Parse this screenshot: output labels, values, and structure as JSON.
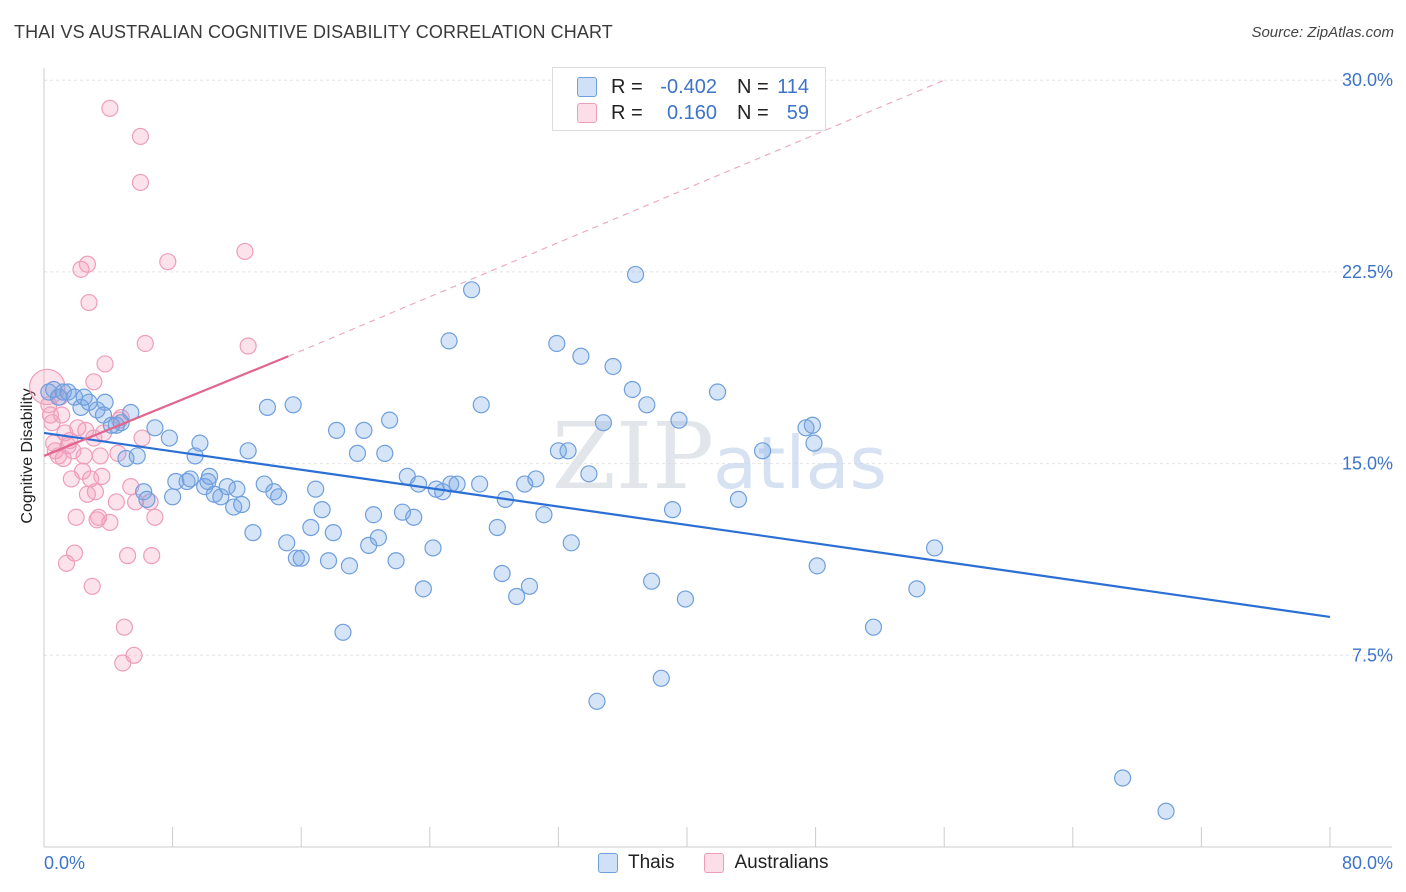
{
  "header": {
    "title": "THAI VS AUSTRALIAN COGNITIVE DISABILITY CORRELATION CHART",
    "source": "Source: ZipAtlas.com"
  },
  "watermark": {
    "zip": "ZIP",
    "atlas": "atlas"
  },
  "legend": {
    "series": [
      {
        "r_label": "R =",
        "r_value": "-0.402",
        "n_label": "N =",
        "n_value": "114"
      },
      {
        "r_label": "R =",
        "r_value": "0.160",
        "n_label": "N =",
        "n_value": "59"
      }
    ],
    "bottom": [
      "Thais",
      "Australians"
    ]
  },
  "colors": {
    "thais_fill": "rgba(120,165,230,0.30)",
    "thais_stroke": "#6f9fdc",
    "thais_line": "#2b6fd4",
    "aus_fill": "rgba(245,160,190,0.30)",
    "aus_stroke": "#ee9dba",
    "aus_line": "#e0668f",
    "tick_label": "#3d74c9"
  },
  "chart_data": {
    "type": "scatter",
    "title": "THAI VS AUSTRALIAN COGNITIVE DISABILITY CORRELATION CHART",
    "xlabel": "",
    "ylabel": "Cognitive Disability",
    "xlim": [
      0,
      80
    ],
    "ylim": [
      0,
      31
    ],
    "x_tick_labels": [
      {
        "value": 0,
        "label": "0.0%"
      },
      {
        "value": 80,
        "label": "80.0%"
      }
    ],
    "y_tick_labels": [
      {
        "value": 7.5,
        "label": "7.5%"
      },
      {
        "value": 15,
        "label": "15.0%"
      },
      {
        "value": 22.5,
        "label": "22.5%"
      },
      {
        "value": 30,
        "label": "30.0%"
      }
    ],
    "x_minor_ticks": [
      0,
      8,
      16,
      24,
      32,
      40,
      48,
      56,
      64,
      72,
      80
    ],
    "grid": true,
    "legend_position": "top-center",
    "series": [
      {
        "name": "Thais",
        "trend": {
          "x0": 0,
          "y0": 16.2,
          "x1": 80,
          "y1": 9.0
        },
        "points": [
          [
            0.3,
            17.8
          ],
          [
            0.6,
            17.9
          ],
          [
            0.9,
            17.6
          ],
          [
            1.2,
            17.8
          ],
          [
            1.5,
            17.8
          ],
          [
            1.9,
            17.6
          ],
          [
            2.3,
            17.2
          ],
          [
            2.8,
            17.4
          ],
          [
            3.3,
            17.1
          ],
          [
            3.8,
            17.4
          ],
          [
            3.7,
            16.9
          ],
          [
            4.5,
            16.5
          ],
          [
            4.8,
            16.6
          ],
          [
            5.4,
            17.0
          ],
          [
            5.1,
            15.2
          ],
          [
            5.8,
            15.3
          ],
          [
            6.2,
            13.9
          ],
          [
            6.4,
            13.6
          ],
          [
            6.9,
            16.4
          ],
          [
            7.8,
            16.0
          ],
          [
            8.0,
            13.7
          ],
          [
            8.2,
            14.3
          ],
          [
            8.9,
            14.3
          ],
          [
            9.1,
            14.4
          ],
          [
            9.4,
            15.3
          ],
          [
            9.7,
            15.8
          ],
          [
            10.0,
            14.1
          ],
          [
            10.2,
            14.3
          ],
          [
            10.3,
            14.5
          ],
          [
            10.6,
            13.8
          ],
          [
            11.0,
            13.7
          ],
          [
            11.4,
            14.1
          ],
          [
            11.8,
            13.3
          ],
          [
            12.0,
            14.0
          ],
          [
            12.3,
            13.4
          ],
          [
            12.7,
            15.5
          ],
          [
            13.0,
            12.3
          ],
          [
            13.7,
            14.2
          ],
          [
            13.9,
            17.2
          ],
          [
            14.3,
            13.9
          ],
          [
            14.6,
            13.7
          ],
          [
            15.1,
            11.9
          ],
          [
            15.5,
            17.3
          ],
          [
            15.7,
            11.3
          ],
          [
            16.0,
            11.3
          ],
          [
            16.6,
            12.5
          ],
          [
            16.9,
            14.0
          ],
          [
            17.3,
            13.2
          ],
          [
            17.7,
            11.2
          ],
          [
            18.0,
            12.3
          ],
          [
            18.2,
            16.3
          ],
          [
            18.6,
            8.4
          ],
          [
            19.0,
            11.0
          ],
          [
            19.5,
            15.4
          ],
          [
            19.9,
            16.3
          ],
          [
            20.2,
            11.8
          ],
          [
            20.5,
            13.0
          ],
          [
            20.8,
            12.1
          ],
          [
            21.2,
            15.4
          ],
          [
            21.5,
            16.7
          ],
          [
            21.9,
            11.2
          ],
          [
            22.3,
            13.1
          ],
          [
            22.6,
            14.5
          ],
          [
            23.0,
            12.9
          ],
          [
            23.3,
            14.2
          ],
          [
            23.6,
            10.1
          ],
          [
            24.2,
            11.7
          ],
          [
            24.4,
            14.0
          ],
          [
            24.8,
            13.9
          ],
          [
            25.3,
            14.2
          ],
          [
            25.7,
            14.2
          ],
          [
            25.2,
            19.8
          ],
          [
            26.6,
            21.8
          ],
          [
            27.1,
            14.2
          ],
          [
            27.2,
            17.3
          ],
          [
            28.2,
            12.5
          ],
          [
            28.5,
            10.7
          ],
          [
            28.7,
            13.6
          ],
          [
            29.4,
            9.8
          ],
          [
            29.9,
            14.2
          ],
          [
            30.2,
            10.2
          ],
          [
            30.6,
            14.4
          ],
          [
            31.1,
            13.0
          ],
          [
            32.0,
            15.5
          ],
          [
            32.6,
            15.5
          ],
          [
            31.9,
            19.7
          ],
          [
            32.8,
            11.9
          ],
          [
            33.4,
            19.2
          ],
          [
            33.9,
            14.6
          ],
          [
            34.4,
            5.7
          ],
          [
            34.8,
            16.6
          ],
          [
            35.4,
            18.8
          ],
          [
            36.6,
            17.9
          ],
          [
            36.8,
            22.4
          ],
          [
            37.5,
            17.3
          ],
          [
            37.8,
            10.4
          ],
          [
            38.4,
            6.6
          ],
          [
            39.1,
            13.2
          ],
          [
            39.5,
            16.7
          ],
          [
            39.9,
            9.7
          ],
          [
            41.9,
            17.8
          ],
          [
            43.2,
            13.6
          ],
          [
            44.7,
            15.5
          ],
          [
            47.4,
            16.4
          ],
          [
            47.8,
            16.5
          ],
          [
            47.9,
            15.8
          ],
          [
            48.1,
            11.0
          ],
          [
            51.6,
            8.6
          ],
          [
            54.3,
            10.1
          ],
          [
            55.4,
            11.7
          ],
          [
            67.1,
            2.7
          ],
          [
            69.8,
            1.4
          ],
          [
            4.2,
            16.5
          ],
          [
            2.5,
            17.6
          ]
        ],
        "sizes": [
          1,
          1,
          1,
          1,
          1,
          1,
          1,
          1,
          1,
          1,
          1,
          1,
          1,
          1,
          1,
          1,
          1,
          1,
          1,
          1,
          1,
          1,
          1,
          1,
          1,
          1,
          1,
          1,
          1,
          1,
          1,
          1,
          1,
          1,
          1,
          1,
          1,
          1,
          1,
          1,
          1,
          1,
          1,
          1,
          1,
          1,
          1,
          1,
          1,
          1,
          1,
          1,
          1,
          1,
          1,
          1,
          1,
          1,
          1,
          1,
          1,
          1,
          1,
          1,
          1,
          1,
          1,
          1,
          1,
          1,
          1,
          1,
          1,
          1,
          1,
          1,
          1,
          1,
          1,
          1,
          1,
          1,
          1,
          1,
          1,
          1,
          1,
          1,
          1,
          1,
          1,
          1,
          1,
          1,
          1,
          1,
          1,
          1,
          1,
          1,
          1,
          1,
          1,
          1,
          1,
          1,
          1,
          1,
          1,
          1,
          1,
          1,
          1,
          1
        ]
      },
      {
        "name": "Australians",
        "trend": {
          "x0": 0,
          "y0": 15.3,
          "x1": 15.2,
          "y1": 19.2
        },
        "trend_extended": {
          "x0": 15.2,
          "y0": 19.2,
          "x1": 56,
          "y1": 30.0
        },
        "points": [
          [
            0.2,
            18.0
          ],
          [
            0.3,
            17.3
          ],
          [
            0.4,
            16.9
          ],
          [
            0.5,
            16.6
          ],
          [
            0.6,
            15.8
          ],
          [
            0.7,
            15.5
          ],
          [
            0.9,
            15.3
          ],
          [
            1.0,
            17.6
          ],
          [
            1.1,
            16.9
          ],
          [
            1.2,
            15.2
          ],
          [
            1.3,
            16.2
          ],
          [
            1.4,
            11.1
          ],
          [
            1.5,
            15.7
          ],
          [
            1.6,
            15.9
          ],
          [
            1.7,
            14.4
          ],
          [
            1.8,
            15.5
          ],
          [
            1.9,
            11.5
          ],
          [
            2.0,
            12.9
          ],
          [
            2.1,
            16.4
          ],
          [
            2.3,
            22.6
          ],
          [
            2.4,
            14.7
          ],
          [
            2.5,
            15.3
          ],
          [
            2.6,
            16.3
          ],
          [
            2.7,
            22.8
          ],
          [
            2.7,
            13.8
          ],
          [
            2.8,
            21.3
          ],
          [
            2.9,
            14.4
          ],
          [
            3.0,
            10.2
          ],
          [
            3.1,
            18.2
          ],
          [
            3.1,
            16.0
          ],
          [
            3.2,
            13.9
          ],
          [
            3.3,
            12.8
          ],
          [
            3.4,
            12.9
          ],
          [
            3.5,
            15.3
          ],
          [
            3.6,
            14.5
          ],
          [
            3.7,
            16.2
          ],
          [
            3.8,
            18.9
          ],
          [
            4.1,
            12.7
          ],
          [
            4.1,
            28.9
          ],
          [
            4.5,
            13.5
          ],
          [
            4.7,
            16.7
          ],
          [
            4.8,
            16.8
          ],
          [
            5.0,
            8.6
          ],
          [
            4.9,
            7.2
          ],
          [
            5.2,
            11.4
          ],
          [
            5.4,
            14.1
          ],
          [
            5.6,
            7.5
          ],
          [
            6.0,
            27.8
          ],
          [
            6.0,
            26.0
          ],
          [
            6.1,
            16.0
          ],
          [
            6.3,
            19.7
          ],
          [
            6.6,
            13.5
          ],
          [
            6.7,
            11.4
          ],
          [
            6.9,
            12.9
          ],
          [
            7.7,
            22.9
          ],
          [
            12.5,
            23.3
          ],
          [
            12.7,
            19.6
          ],
          [
            5.7,
            13.5
          ],
          [
            4.6,
            15.4
          ]
        ],
        "sizes": [
          2.2,
          1,
          1,
          1,
          1,
          1,
          1,
          1,
          1,
          1,
          1,
          1,
          1,
          1,
          1,
          1,
          1,
          1,
          1,
          1,
          1,
          1,
          1,
          1,
          1,
          1,
          1,
          1,
          1,
          1,
          1,
          1,
          1,
          1,
          1,
          1,
          1,
          1,
          1,
          1,
          1,
          1,
          1,
          1,
          1,
          1,
          1,
          1,
          1,
          1,
          1,
          1,
          1,
          1,
          1,
          1,
          1,
          1,
          1
        ]
      }
    ]
  }
}
